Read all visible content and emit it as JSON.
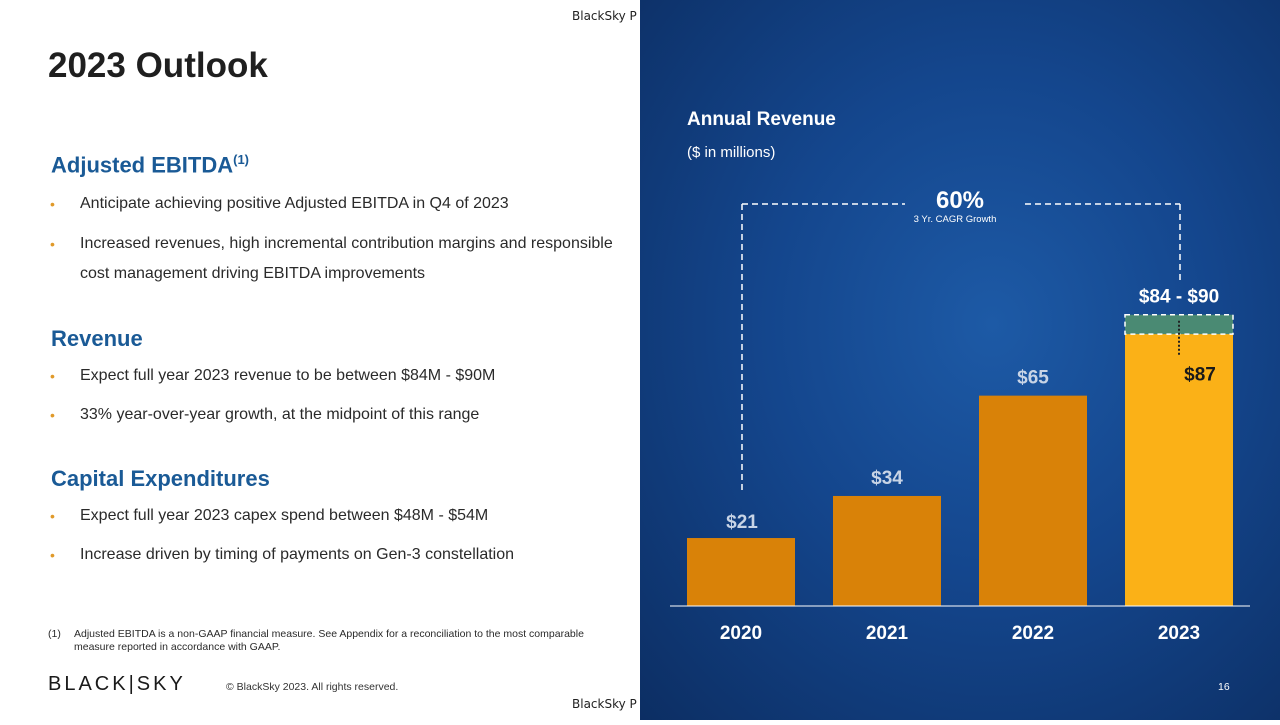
{
  "header": {
    "watermark": "BlackSky P"
  },
  "footer": {
    "watermark": "BlackSky P",
    "logo": "BLACK|SKY",
    "copyright": "© BlackSky 2023. All rights reserved.",
    "page_number": "16"
  },
  "page": {
    "title": "2023 Outlook"
  },
  "sections": {
    "ebitda": {
      "title": "Adjusted EBITDA",
      "superscript": "(1)",
      "bullets": [
        "Anticipate achieving positive Adjusted EBITDA in Q4 of 2023",
        "Increased revenues, high incremental contribution margins and responsible cost management driving EBITDA improvements"
      ]
    },
    "revenue": {
      "title": "Revenue",
      "bullets": [
        "Expect full year 2023 revenue to be between $84M - $90M",
        "33% year-over-year growth, at the midpoint of this range"
      ]
    },
    "capex": {
      "title": "Capital Expenditures",
      "bullets": [
        "Expect full year 2023 capex spend between $48M - $54M",
        "Increase driven by timing of payments on Gen-3 constellation"
      ]
    }
  },
  "bullet_marker": "•",
  "footnote": {
    "number": "(1)",
    "text": "Adjusted EBITDA is a non-GAAP financial measure. See Appendix for a reconciliation to the most comparable measure reported in accordance with GAAP."
  },
  "chart_data": {
    "type": "bar",
    "title": "Annual Revenue",
    "subtitle": "($ in millions)",
    "categories": [
      "2020",
      "2021",
      "2022",
      "2023"
    ],
    "values": [
      21,
      34,
      65,
      87
    ],
    "value_labels": [
      "$21",
      "$34",
      "$65",
      "$87"
    ],
    "range_2023": {
      "low": 84,
      "high": 90,
      "label": "$84 - $90"
    },
    "cagr": {
      "value": "60%",
      "label": "3 Yr. CAGR Growth"
    },
    "ylim": [
      0,
      110
    ],
    "colors": {
      "historical": "#d98208",
      "forecast": "#fbb117",
      "range_band": "#4a8a73",
      "label": "#c8d4e6",
      "highlight_label": "#ffffff",
      "forecast_label": "#1a1a1a"
    }
  }
}
